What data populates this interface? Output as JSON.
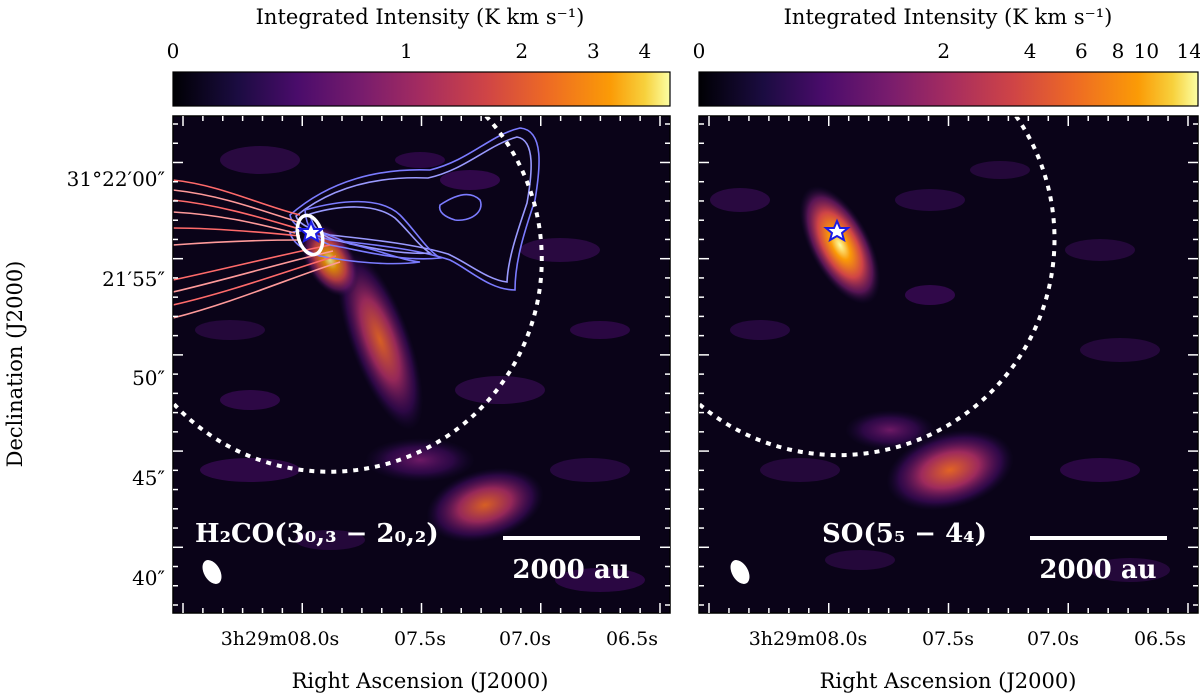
{
  "chart_data": [
    {
      "type": "heatmap",
      "panel": "left",
      "colorbar": {
        "label": "Integrated Intensity (K km s⁻¹)",
        "ticks": [
          {
            "label": "0",
            "value": 0
          },
          {
            "label": "1",
            "value": 1
          },
          {
            "label": "2",
            "value": 2
          },
          {
            "label": "3",
            "value": 3
          },
          {
            "label": "4",
            "value": 4
          }
        ],
        "range": [
          0,
          4.6
        ],
        "colormap": "inferno"
      },
      "molecule_label": "H₂CO(3₀,₃ − 2₀,₂)",
      "scalebar_label": "2000 au",
      "xlabel": "Right Ascension (J2000)",
      "ylabel": "Declination (J2000)",
      "x_ticks": [
        "3h29m08.0s",
        "07.5s",
        "07.0s",
        "06.5s"
      ],
      "y_ticks": [
        "31°22′00″",
        "21′55″",
        "50″",
        "45″",
        "40″"
      ],
      "emission_blobs": [
        {
          "name": "core",
          "ra_offset_s": 0.22,
          "dec_offset": 9.0,
          "peak": 4.0
        },
        {
          "name": "streamer",
          "ra_offset_s": 0.42,
          "dec_offset": 5.0,
          "peak": 2.5
        },
        {
          "name": "south-clump",
          "ra_offset_s": 0.62,
          "dec_offset": -3.0,
          "peak": 2.2
        }
      ],
      "overlays": [
        "red-shifted outflow contours",
        "blue-shifted outflow contours",
        "protostar marker",
        "primary beam boundary",
        "synthesized beam"
      ]
    },
    {
      "type": "heatmap",
      "panel": "right",
      "colorbar": {
        "label": "Integrated Intensity (K km s⁻¹)",
        "ticks": [
          {
            "label": "0",
            "value": 0
          },
          {
            "label": "2",
            "value": 2
          },
          {
            "label": "4",
            "value": 4
          },
          {
            "label": "6",
            "value": 6
          },
          {
            "label": "8",
            "value": 8
          },
          {
            "label": "10",
            "value": 10
          },
          {
            "label": "14",
            "value": 14
          }
        ],
        "range": [
          0,
          15
        ],
        "colormap": "inferno"
      },
      "molecule_label": "SO(5₅ − 4₄)",
      "scalebar_label": "2000 au",
      "xlabel": "Right Ascension (J2000)",
      "x_ticks": [
        "3h29m08.0s",
        "07.5s",
        "07.0s",
        "06.5s"
      ],
      "emission_blobs": [
        {
          "name": "core",
          "ra_offset_s": 0.2,
          "dec_offset": 9.0,
          "peak": 14.0
        },
        {
          "name": "south-clump",
          "ra_offset_s": 0.55,
          "dec_offset": -3.0,
          "peak": 6.0
        }
      ],
      "overlays": [
        "protostar marker",
        "primary beam boundary",
        "synthesized beam"
      ]
    }
  ]
}
